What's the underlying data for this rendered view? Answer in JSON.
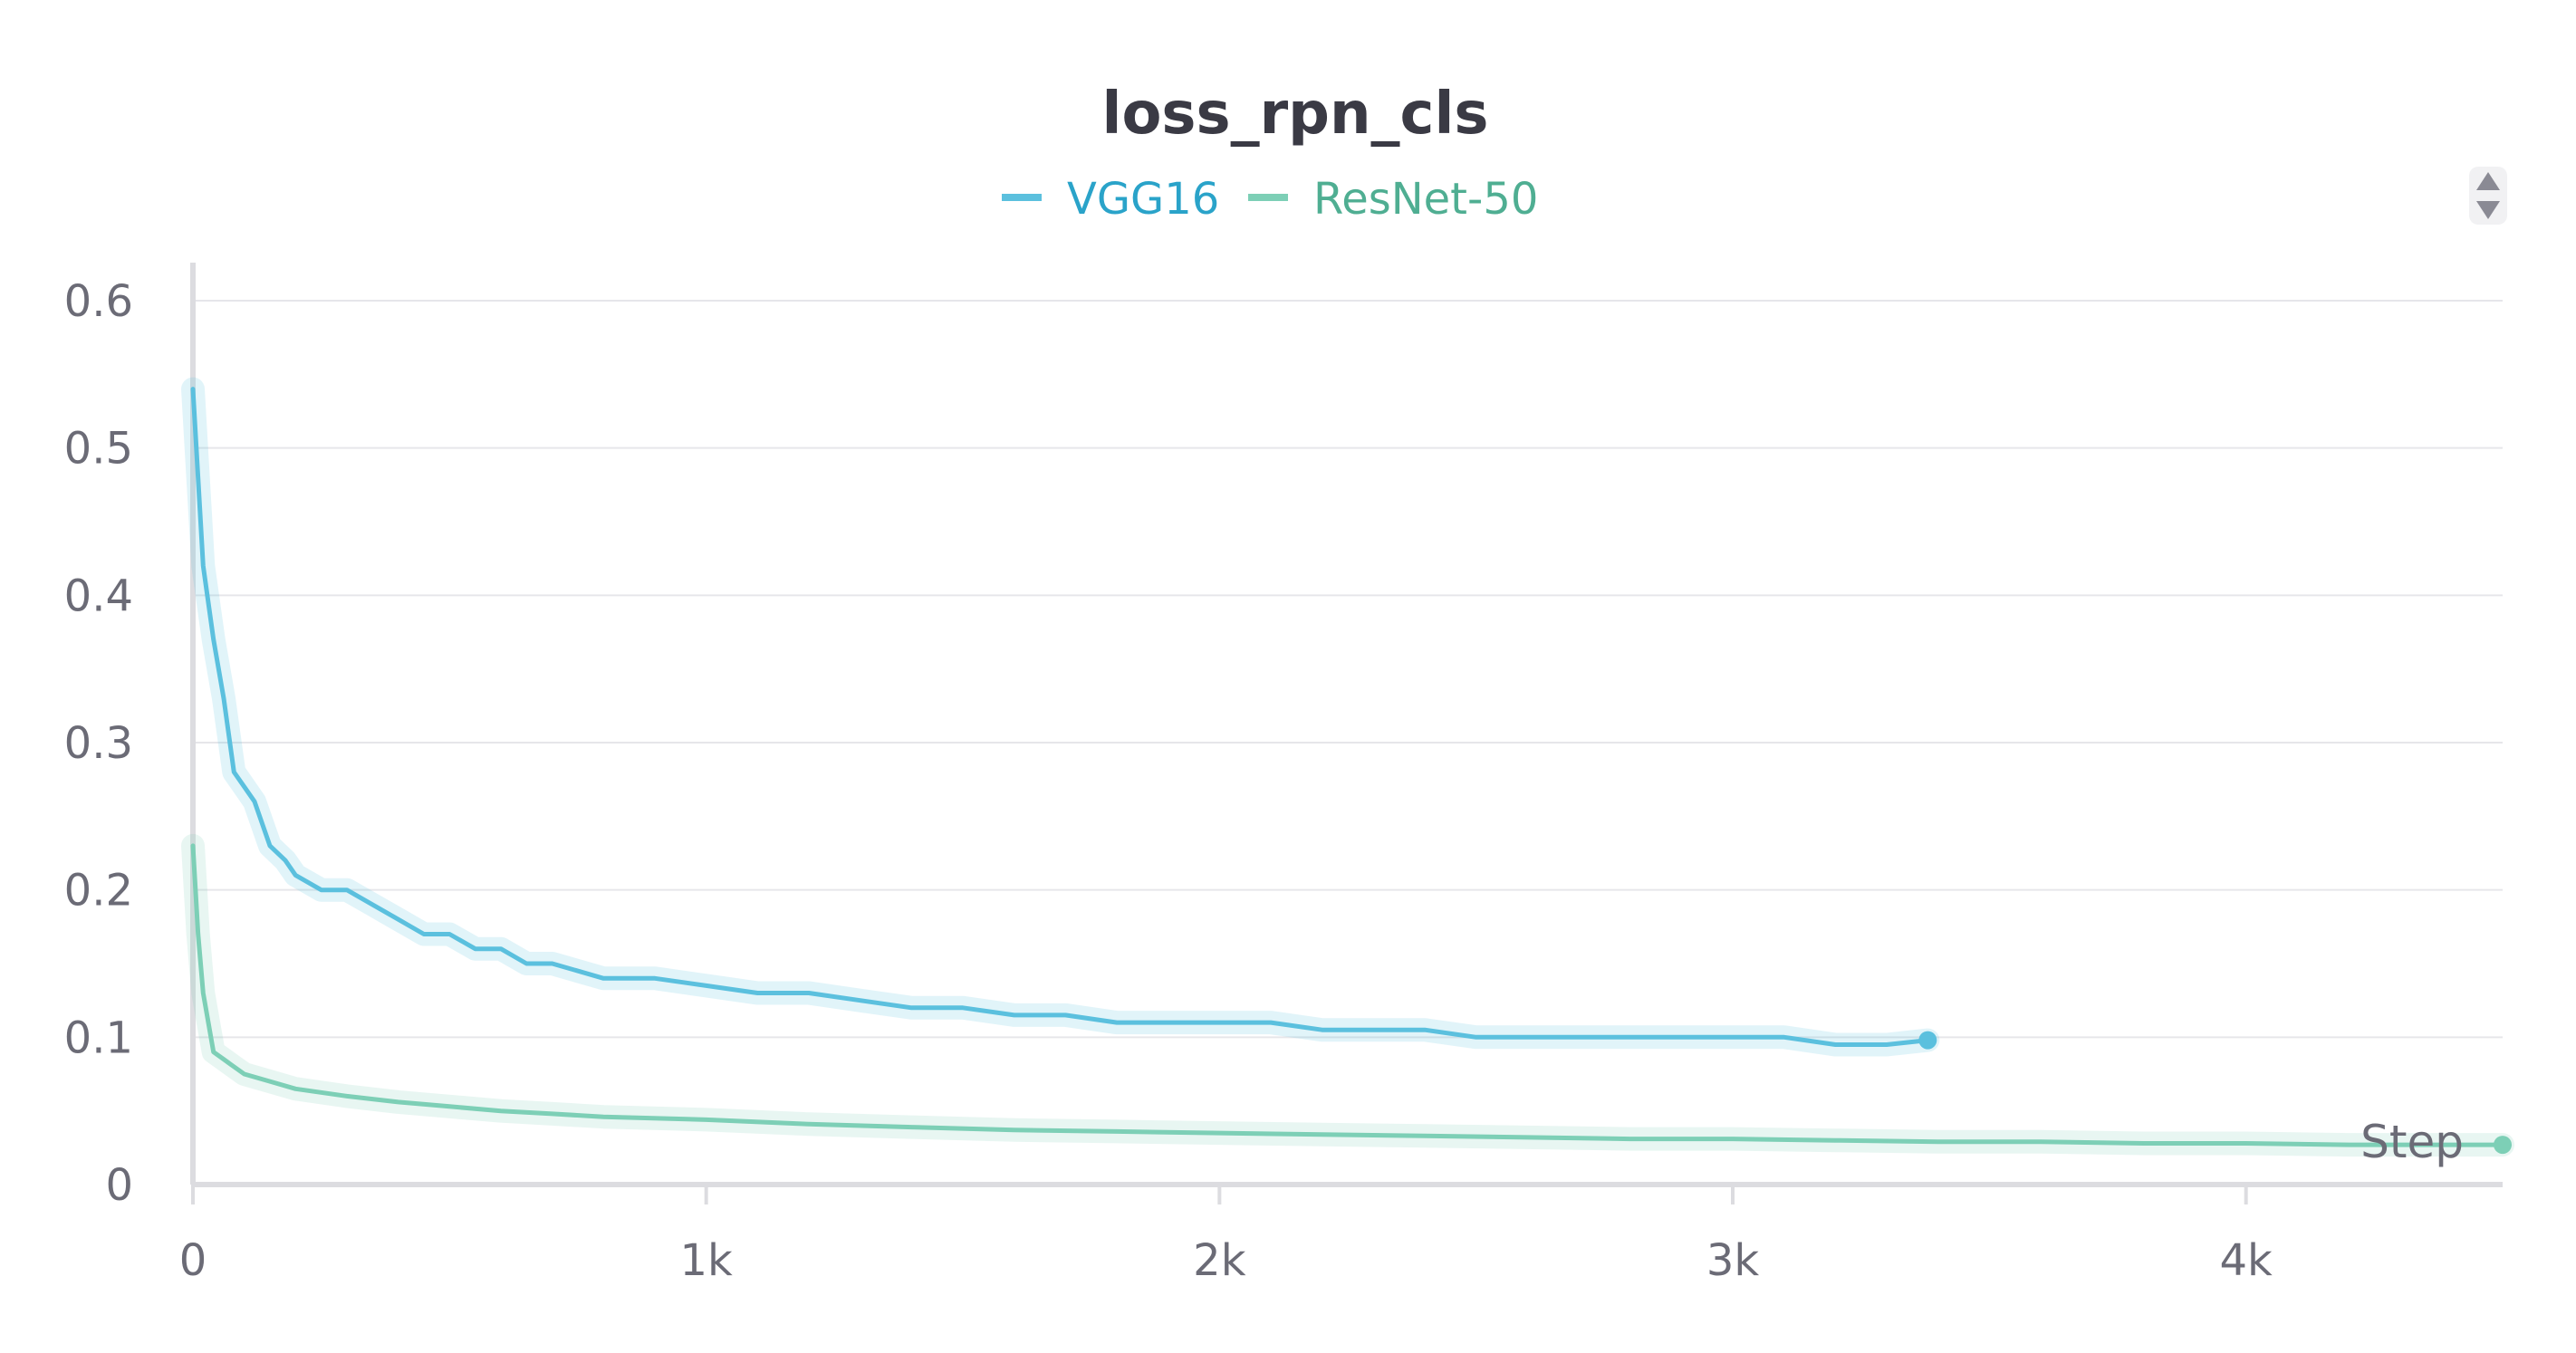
{
  "chart_data": {
    "type": "line",
    "title": "loss_rpn_cls",
    "xlabel": "Step",
    "ylabel": "",
    "xlim": [
      0,
      4500
    ],
    "ylim": [
      0,
      0.6
    ],
    "x_ticks": [
      0,
      1000,
      2000,
      3000,
      4000
    ],
    "x_tick_labels": [
      "0",
      "1k",
      "2k",
      "3k",
      "4k"
    ],
    "y_ticks": [
      0,
      0.1,
      0.2,
      0.3,
      0.4,
      0.5,
      0.6
    ],
    "y_tick_labels": [
      "0",
      "0.1",
      "0.2",
      "0.3",
      "0.4",
      "0.5",
      "0.6"
    ],
    "grid": true,
    "legend_position": "top-center",
    "series": [
      {
        "name": "VGG16",
        "color": "#5bc0de",
        "x": [
          0,
          20,
          40,
          60,
          80,
          100,
          120,
          150,
          180,
          200,
          250,
          300,
          350,
          400,
          450,
          500,
          550,
          600,
          650,
          700,
          800,
          900,
          1000,
          1100,
          1200,
          1300,
          1400,
          1500,
          1600,
          1700,
          1800,
          1900,
          2000,
          2100,
          2200,
          2300,
          2400,
          2500,
          2600,
          2700,
          2800,
          2900,
          3000,
          3100,
          3200,
          3300,
          3380
        ],
        "y": [
          0.54,
          0.42,
          0.37,
          0.33,
          0.28,
          0.27,
          0.26,
          0.23,
          0.22,
          0.21,
          0.2,
          0.2,
          0.19,
          0.18,
          0.17,
          0.17,
          0.16,
          0.16,
          0.15,
          0.15,
          0.14,
          0.14,
          0.135,
          0.13,
          0.13,
          0.125,
          0.12,
          0.12,
          0.115,
          0.115,
          0.11,
          0.11,
          0.11,
          0.11,
          0.105,
          0.105,
          0.105,
          0.1,
          0.1,
          0.1,
          0.1,
          0.1,
          0.1,
          0.1,
          0.095,
          0.095,
          0.098
        ]
      },
      {
        "name": "ResNet-50",
        "color": "#7dcfb6",
        "x": [
          0,
          10,
          20,
          30,
          40,
          60,
          80,
          100,
          150,
          200,
          300,
          400,
          500,
          600,
          700,
          800,
          1000,
          1200,
          1400,
          1600,
          1800,
          2000,
          2200,
          2400,
          2600,
          2800,
          3000,
          3200,
          3400,
          3600,
          3800,
          4000,
          4200,
          4400,
          4500
        ],
        "y": [
          0.23,
          0.17,
          0.13,
          0.11,
          0.09,
          0.085,
          0.08,
          0.075,
          0.07,
          0.065,
          0.06,
          0.056,
          0.053,
          0.05,
          0.048,
          0.046,
          0.044,
          0.041,
          0.039,
          0.037,
          0.036,
          0.035,
          0.034,
          0.033,
          0.032,
          0.031,
          0.031,
          0.03,
          0.029,
          0.029,
          0.028,
          0.028,
          0.027,
          0.027,
          0.027
        ]
      }
    ]
  }
}
